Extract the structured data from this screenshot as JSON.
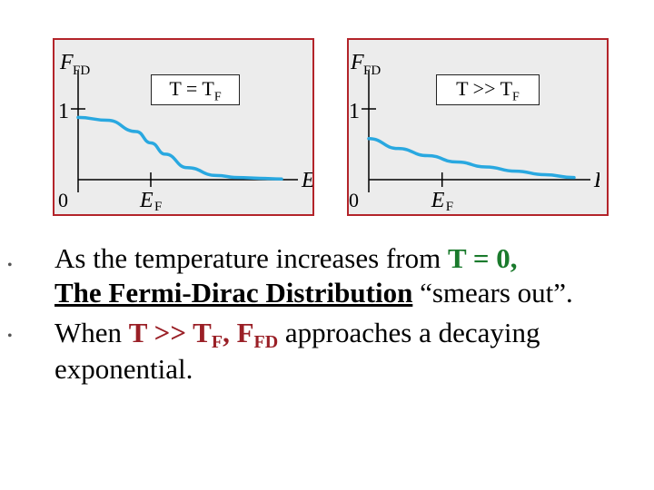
{
  "chart_data": [
    {
      "type": "line",
      "condition_label": "T = T",
      "condition_sub": "F",
      "y_axis_label": "F",
      "y_axis_sub": "FD",
      "x_axis_label": "E",
      "x_tick_label": "E",
      "x_tick_sub": "F",
      "y_tick_label": "1",
      "origin_label": "0",
      "series": [
        {
          "x": [
            0.0,
            0.4,
            0.8,
            1.0,
            1.2,
            1.5,
            1.9,
            2.2,
            2.5,
            2.8
          ],
          "y": [
            0.88,
            0.84,
            0.68,
            0.52,
            0.36,
            0.17,
            0.06,
            0.03,
            0.02,
            0.01
          ]
        }
      ],
      "color": "#29a8e0"
    },
    {
      "type": "line",
      "condition_label": "T >> T",
      "condition_sub": "F",
      "y_axis_label": "F",
      "y_axis_sub": "FD",
      "x_axis_label": "E",
      "x_tick_label": "E",
      "x_tick_sub": "F",
      "y_tick_label": "1",
      "origin_label": "0",
      "series": [
        {
          "x": [
            0.0,
            0.4,
            0.8,
            1.2,
            1.6,
            2.0,
            2.4,
            2.8
          ],
          "y": [
            0.58,
            0.44,
            0.34,
            0.25,
            0.18,
            0.12,
            0.07,
            0.03
          ]
        }
      ],
      "color": "#29a8e0"
    }
  ],
  "bullets": [
    {
      "lines": [
        {
          "pre": "As the temperature increases from ",
          "highlight": "T = 0,"
        },
        {
          "underlined": "The Fermi-Dirac Distribution",
          "post": " “smears out”."
        }
      ]
    },
    {
      "lines": [
        {
          "pre": "When ",
          "red1": "T >> T",
          "red1_sub": "F",
          "red2": ", F",
          "red2_sub": "FD",
          "post": " approaches a decaying"
        },
        {
          "pre": "exponential."
        }
      ]
    }
  ],
  "bullet_symbol": "•"
}
